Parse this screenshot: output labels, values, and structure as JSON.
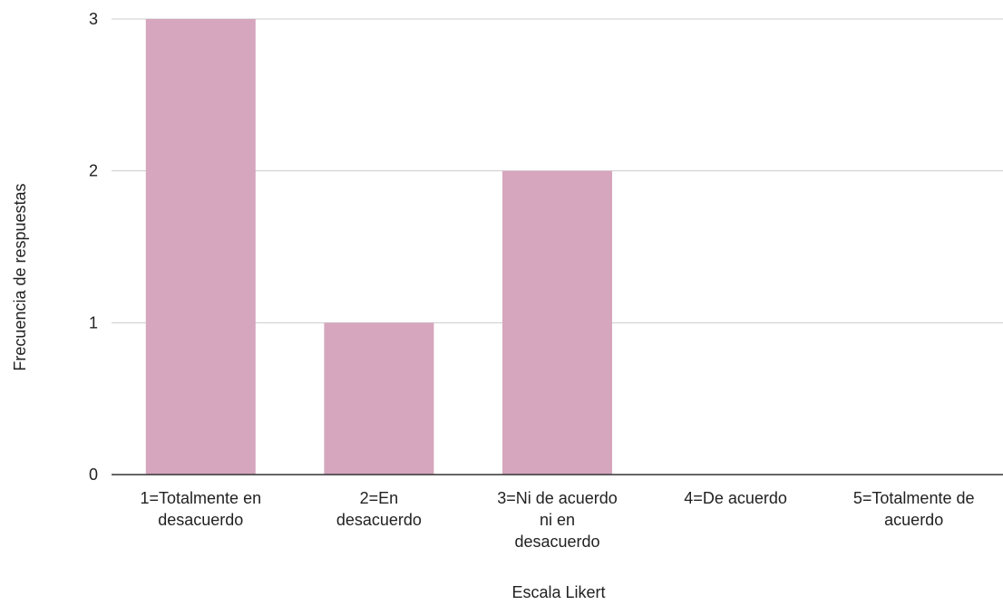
{
  "chart_data": {
    "type": "bar",
    "categories": [
      [
        "1=Totalmente en",
        "desacuerdo"
      ],
      [
        "2=En",
        "desacuerdo"
      ],
      [
        "3=Ni de acuerdo",
        "ni en",
        "desacuerdo"
      ],
      [
        "4=De acuerdo"
      ],
      [
        "5=Totalmente de",
        "acuerdo"
      ]
    ],
    "values": [
      3,
      1,
      2,
      0,
      0
    ],
    "title": "",
    "xlabel": "Escala Likert",
    "ylabel": "Frecuencia de respuestas",
    "ylim": [
      0,
      3
    ],
    "yticks": [
      "0",
      "1",
      "2",
      "3"
    ],
    "grid": true,
    "colors": {
      "bar": "#d5a6bd",
      "grid": "#cccccc",
      "axis": "#333333"
    }
  }
}
